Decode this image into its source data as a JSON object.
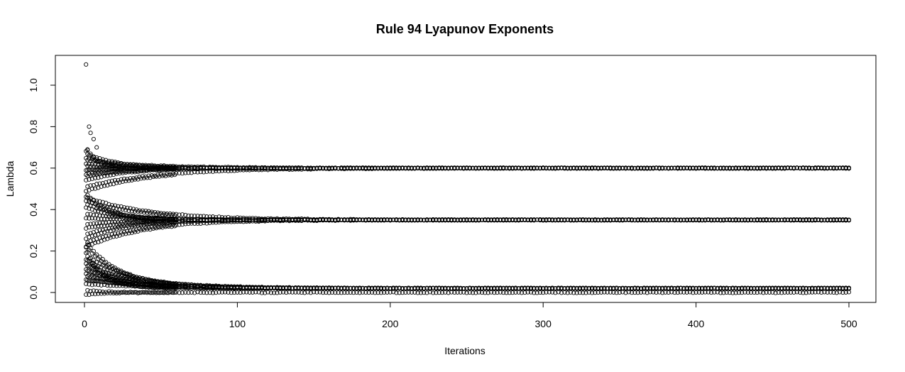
{
  "chart_data": {
    "type": "scatter",
    "title": "Rule 94 Lyapunov Exponents",
    "xlabel": "Iterations",
    "ylabel": "Lambda",
    "xlim": [
      1,
      500
    ],
    "ylim": [
      0,
      1.1
    ],
    "x_ticks": [
      0,
      100,
      200,
      300,
      400,
      500
    ],
    "y_ticks": [
      0.0,
      0.2,
      0.4,
      0.6,
      0.8,
      1.0
    ],
    "x_tick_labels": [
      "0",
      "100",
      "200",
      "300",
      "400",
      "500"
    ],
    "y_tick_labels": [
      "0.0",
      "0.2",
      "0.4",
      "0.6",
      "0.8",
      "1.0"
    ],
    "grid": false,
    "marker": "open-circle",
    "series_structure": {
      "iterations": [
        1,
        500
      ],
      "bands": [
        {
          "converges_to": 0.6,
          "initial_values": [
            0.69,
            0.6,
            0.66,
            0.55,
            0.63,
            0.58,
            0.5
          ]
        },
        {
          "converges_to": 0.35,
          "initial_values": [
            0.47,
            0.42,
            0.37,
            0.32,
            0.27,
            0.23,
            0.45
          ]
        },
        {
          "converges_to": 0.02,
          "initial_values": [
            0.2,
            0.15,
            0.1,
            0.23,
            0.17,
            0.12,
            0.07,
            0.05
          ]
        },
        {
          "converges_to": 0.0,
          "initial_values": [
            0.0
          ]
        }
      ],
      "notable_points": [
        {
          "x": 1,
          "y": 1.1
        },
        {
          "x": 2,
          "y": 0.69
        },
        {
          "x": 3,
          "y": 0.8
        },
        {
          "x": 4,
          "y": 0.77
        },
        {
          "x": 6,
          "y": 0.74
        },
        {
          "x": 8,
          "y": 0.7
        },
        {
          "x": 3,
          "y": 0.23
        },
        {
          "x": 5,
          "y": 0.14
        }
      ]
    }
  }
}
